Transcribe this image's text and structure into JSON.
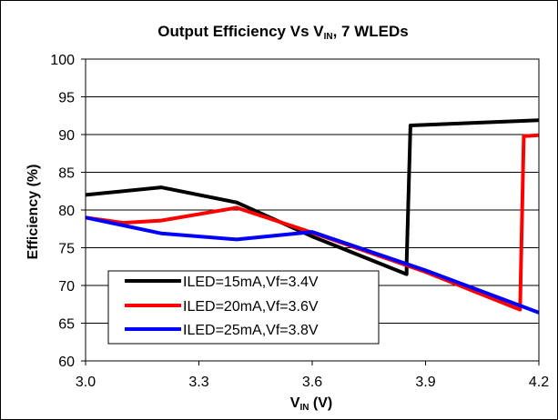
{
  "chart_data": {
    "type": "line",
    "title": {
      "main": "Output Efficiency Vs V",
      "sub": "IN",
      "tail": ", 7 WLEDs"
    },
    "xlabel": {
      "main": "V",
      "sub": "IN",
      "tail": " (V)"
    },
    "ylabel": "Efficiency (%)",
    "xlim": [
      3.0,
      4.2
    ],
    "ylim": [
      60,
      100
    ],
    "xticks": [
      "3.0",
      "3.3",
      "3.6",
      "3.9",
      "4.2"
    ],
    "yticks": [
      "60",
      "65",
      "70",
      "75",
      "80",
      "85",
      "90",
      "95",
      "100"
    ],
    "grid": "horizontal",
    "legend_position": "bottom-left",
    "series": [
      {
        "name": "ILED=15mA,Vf=3.4V",
        "color": "#000000",
        "points": [
          [
            3.0,
            82.0
          ],
          [
            3.2,
            83.0
          ],
          [
            3.4,
            81.0
          ],
          [
            3.6,
            76.5
          ],
          [
            3.85,
            71.5
          ],
          [
            3.85,
            73.0
          ],
          [
            3.86,
            91.2
          ],
          [
            4.0,
            91.5
          ],
          [
            4.2,
            91.9
          ]
        ]
      },
      {
        "name": "ILED=20mA,Vf=3.6V",
        "color": "#ff0000",
        "points": [
          [
            3.0,
            79.0
          ],
          [
            3.1,
            78.3
          ],
          [
            3.2,
            78.6
          ],
          [
            3.4,
            80.3
          ],
          [
            3.6,
            77.0
          ],
          [
            3.9,
            71.8
          ],
          [
            4.15,
            66.8
          ],
          [
            4.16,
            89.8
          ],
          [
            4.2,
            89.9
          ]
        ]
      },
      {
        "name": "ILED=25mA,Vf=3.8V",
        "color": "#0000ff",
        "points": [
          [
            3.0,
            79.0
          ],
          [
            3.2,
            76.9
          ],
          [
            3.4,
            76.1
          ],
          [
            3.6,
            77.1
          ],
          [
            3.9,
            72.0
          ],
          [
            4.2,
            66.4
          ]
        ]
      }
    ]
  }
}
